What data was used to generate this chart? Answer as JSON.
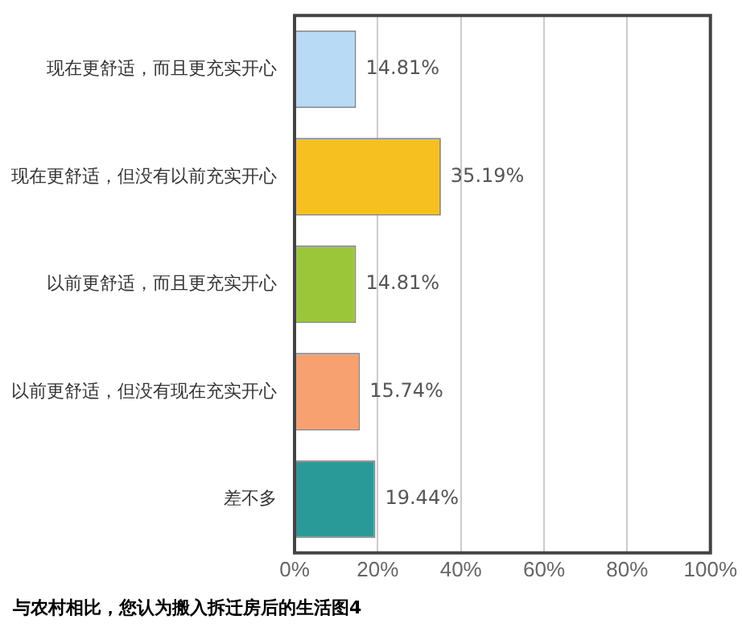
{
  "chart_data": {
    "type": "bar",
    "orientation": "horizontal",
    "categories": [
      "现在更舒适，而且更充实开心",
      "现在更舒适，但没有以前充实开心",
      "以前更舒适，而且更充实开心",
      "以前更舒适，但没有现在充实开心",
      "差不多"
    ],
    "values": [
      14.81,
      35.19,
      14.81,
      15.74,
      19.44
    ],
    "colors": [
      "#b8daf5",
      "#f5c020",
      "#9cc63a",
      "#f7a070",
      "#2a9a98"
    ],
    "value_labels": [
      "14.81%",
      "35.19%",
      "14.81%",
      "15.74%",
      "19.44%"
    ],
    "xlim": [
      0,
      100
    ],
    "xticks": [
      {
        "value": 0,
        "label": "0%"
      },
      {
        "value": 20,
        "label": "20%"
      },
      {
        "value": 40,
        "label": "40%"
      },
      {
        "value": 60,
        "label": "60%"
      },
      {
        "value": 80,
        "label": "80%"
      },
      {
        "value": 100,
        "label": "100%"
      }
    ],
    "grid": "x",
    "legend": false,
    "annotations": [
      "与农村相比，您认为搬入拆迁房后的生活图4"
    ]
  }
}
